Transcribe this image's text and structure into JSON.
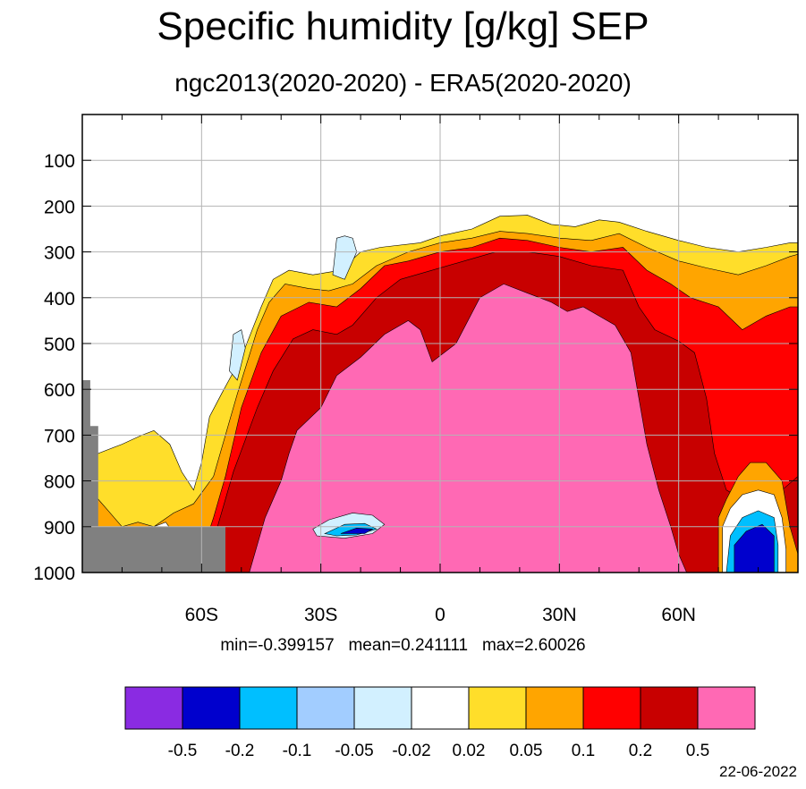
{
  "chart_data": {
    "type": "heatmap",
    "title": "Specific humidity [g/kg] SEP",
    "subtitle": "ngc2013(2020-2020) - ERA5(2020-2020)",
    "stats_text": "min=-0.399157   mean=0.241111   max=2.60026",
    "date": "22-06-2022",
    "x_range": [
      -90,
      90
    ],
    "y_range": [
      0,
      1000
    ],
    "y_reversed": true,
    "x_ticks": [
      {
        "value": -60,
        "label": "60S"
      },
      {
        "value": -30,
        "label": "30S"
      },
      {
        "value": 0,
        "label": "0"
      },
      {
        "value": 30,
        "label": "30N"
      },
      {
        "value": 60,
        "label": "60N"
      }
    ],
    "y_ticks": [
      {
        "value": 100,
        "label": "100"
      },
      {
        "value": 200,
        "label": "200"
      },
      {
        "value": 300,
        "label": "300"
      },
      {
        "value": 400,
        "label": "400"
      },
      {
        "value": 500,
        "label": "500"
      },
      {
        "value": 600,
        "label": "600"
      },
      {
        "value": 700,
        "label": "700"
      },
      {
        "value": 800,
        "label": "800"
      },
      {
        "value": 900,
        "label": "900"
      },
      {
        "value": 1000,
        "label": "1000"
      }
    ],
    "grid": true,
    "colorbar": {
      "colors": [
        "#8a2be2",
        "#0000cd",
        "#00bfff",
        "#a2cdff",
        "#d2f0ff",
        "#ffffff",
        "#ffde2a",
        "#ffa500",
        "#ff0000",
        "#c80000",
        "#ff69b4"
      ],
      "levels": [
        "-0.5",
        "-0.2",
        "-0.1",
        "-0.05",
        "-0.02",
        "0.02",
        "0.05",
        "0.1",
        "0.2",
        "0.5"
      ]
    },
    "regions": [
      {
        "level": 6,
        "color": "#ffde2a",
        "points": [
          [
            -90,
            780
          ],
          [
            -86,
            740
          ],
          [
            -80,
            720
          ],
          [
            -75,
            700
          ],
          [
            -72,
            690
          ],
          [
            -68,
            720
          ],
          [
            -65,
            780
          ],
          [
            -62,
            820
          ],
          [
            -60,
            760
          ],
          [
            -58,
            660
          ],
          [
            -55,
            610
          ],
          [
            -50,
            530
          ],
          [
            -45,
            420
          ],
          [
            -42,
            360
          ],
          [
            -38,
            340
          ],
          [
            -32,
            350
          ],
          [
            -25,
            340
          ],
          [
            -20,
            300
          ],
          [
            -15,
            290
          ],
          [
            -5,
            280
          ],
          [
            0,
            265
          ],
          [
            8,
            250
          ],
          [
            15,
            222
          ],
          [
            22,
            220
          ],
          [
            28,
            240
          ],
          [
            34,
            245
          ],
          [
            40,
            230
          ],
          [
            45,
            235
          ],
          [
            52,
            255
          ],
          [
            60,
            275
          ],
          [
            67,
            290
          ],
          [
            75,
            300
          ],
          [
            82,
            290
          ],
          [
            88,
            280
          ],
          [
            90,
            280
          ],
          [
            90,
            1000
          ],
          [
            -90,
            1000
          ]
        ]
      },
      {
        "level": 7,
        "color": "#ffa500",
        "points": [
          [
            -90,
            860
          ],
          [
            -87,
            830
          ],
          [
            -84,
            860
          ],
          [
            -80,
            900
          ],
          [
            -76,
            890
          ],
          [
            -72,
            900
          ],
          [
            -67,
            870
          ],
          [
            -62,
            850
          ],
          [
            -57,
            790
          ],
          [
            -54,
            700
          ],
          [
            -51,
            610
          ],
          [
            -46,
            470
          ],
          [
            -43,
            410
          ],
          [
            -39,
            370
          ],
          [
            -33,
            380
          ],
          [
            -28,
            385
          ],
          [
            -22,
            370
          ],
          [
            -16,
            330
          ],
          [
            -8,
            300
          ],
          [
            0,
            280
          ],
          [
            8,
            270
          ],
          [
            15,
            255
          ],
          [
            22,
            260
          ],
          [
            30,
            270
          ],
          [
            38,
            275
          ],
          [
            45,
            260
          ],
          [
            52,
            290
          ],
          [
            60,
            320
          ],
          [
            67,
            335
          ],
          [
            75,
            350
          ],
          [
            82,
            330
          ],
          [
            88,
            310
          ],
          [
            90,
            305
          ],
          [
            90,
            1000
          ],
          [
            -90,
            1000
          ]
        ]
      },
      {
        "level": 8,
        "color": "#ff0000",
        "points": [
          [
            -90,
            1000
          ],
          [
            -90,
            880
          ],
          [
            -86,
            900
          ],
          [
            -80,
            925
          ],
          [
            -70,
            930
          ],
          [
            -60,
            960
          ],
          [
            -57,
            880
          ],
          [
            -54,
            790
          ],
          [
            -50,
            640
          ],
          [
            -45,
            520
          ],
          [
            -40,
            440
          ],
          [
            -33,
            410
          ],
          [
            -26,
            420
          ],
          [
            -20,
            380
          ],
          [
            -14,
            330
          ],
          [
            -8,
            320
          ],
          [
            0,
            300
          ],
          [
            8,
            290
          ],
          [
            15,
            270
          ],
          [
            22,
            275
          ],
          [
            30,
            290
          ],
          [
            38,
            300
          ],
          [
            46,
            290
          ],
          [
            52,
            340
          ],
          [
            58,
            370
          ],
          [
            63,
            400
          ],
          [
            70,
            420
          ],
          [
            76,
            470
          ],
          [
            82,
            440
          ],
          [
            88,
            420
          ],
          [
            90,
            420
          ],
          [
            90,
            1000
          ]
        ]
      },
      {
        "level": 9,
        "color": "#c80000",
        "points": [
          [
            -58,
            1000
          ],
          [
            -56,
            900
          ],
          [
            -52,
            780
          ],
          [
            -46,
            640
          ],
          [
            -42,
            560
          ],
          [
            -37,
            490
          ],
          [
            -32,
            470
          ],
          [
            -26,
            480
          ],
          [
            -22,
            460
          ],
          [
            -16,
            400
          ],
          [
            -10,
            360
          ],
          [
            -2,
            340
          ],
          [
            6,
            320
          ],
          [
            14,
            300
          ],
          [
            22,
            300
          ],
          [
            30,
            310
          ],
          [
            38,
            330
          ],
          [
            46,
            340
          ],
          [
            50,
            420
          ],
          [
            54,
            470
          ],
          [
            60,
            495
          ],
          [
            64,
            520
          ],
          [
            67,
            620
          ],
          [
            69,
            740
          ],
          [
            72,
            820
          ],
          [
            80,
            860
          ],
          [
            86,
            820
          ],
          [
            90,
            790
          ],
          [
            90,
            1000
          ]
        ]
      },
      {
        "level": 10,
        "color": "#ff69b4",
        "points": [
          [
            -48,
            1000
          ],
          [
            -44,
            880
          ],
          [
            -40,
            800
          ],
          [
            -38,
            740
          ],
          [
            -36,
            690
          ],
          [
            -30,
            640
          ],
          [
            -26,
            570
          ],
          [
            -20,
            530
          ],
          [
            -14,
            480
          ],
          [
            -8,
            450
          ],
          [
            -5,
            470
          ],
          [
            -2,
            540
          ],
          [
            4,
            500
          ],
          [
            10,
            400
          ],
          [
            16,
            370
          ],
          [
            22,
            390
          ],
          [
            28,
            410
          ],
          [
            32,
            430
          ],
          [
            36,
            420
          ],
          [
            40,
            440
          ],
          [
            44,
            460
          ],
          [
            48,
            520
          ],
          [
            50,
            620
          ],
          [
            52,
            720
          ],
          [
            55,
            820
          ],
          [
            58,
            900
          ],
          [
            60,
            960
          ],
          [
            62,
            1000
          ]
        ]
      },
      {
        "level": 7,
        "color": "#ffa500",
        "points": [
          [
            70,
            1000
          ],
          [
            70,
            880
          ],
          [
            72,
            840
          ],
          [
            75,
            790
          ],
          [
            78,
            760
          ],
          [
            82,
            760
          ],
          [
            86,
            800
          ],
          [
            88,
            900
          ],
          [
            90,
            960
          ],
          [
            90,
            1000
          ]
        ]
      },
      {
        "level": 5,
        "color": "#ffffff",
        "points": [
          [
            71,
            1000
          ],
          [
            71,
            900
          ],
          [
            73,
            860
          ],
          [
            76,
            830
          ],
          [
            80,
            820
          ],
          [
            84,
            830
          ],
          [
            86,
            880
          ],
          [
            87,
            950
          ],
          [
            87,
            1000
          ]
        ]
      },
      {
        "level": 2,
        "color": "#00bfff",
        "points": [
          [
            72,
            1000
          ],
          [
            73,
            920
          ],
          [
            76,
            880
          ],
          [
            80,
            865
          ],
          [
            84,
            880
          ],
          [
            85,
            940
          ],
          [
            85,
            1000
          ]
        ]
      },
      {
        "level": 1,
        "color": "#0000cd",
        "points": [
          [
            74,
            1000
          ],
          [
            74,
            940
          ],
          [
            77,
            910
          ],
          [
            81,
            895
          ],
          [
            84,
            920
          ],
          [
            84,
            1000
          ]
        ]
      },
      {
        "level": 4,
        "color": "#d2f0ff",
        "points": [
          [
            -32,
            905
          ],
          [
            -28,
            885
          ],
          [
            -22,
            870
          ],
          [
            -17,
            875
          ],
          [
            -14,
            895
          ],
          [
            -17,
            915
          ],
          [
            -24,
            925
          ],
          [
            -31,
            920
          ]
        ]
      },
      {
        "level": 2,
        "color": "#00bfff",
        "points": [
          [
            -29,
            915
          ],
          [
            -24,
            895
          ],
          [
            -19,
            893
          ],
          [
            -16,
            905
          ],
          [
            -21,
            918
          ],
          [
            -26,
            920
          ]
        ]
      },
      {
        "level": 1,
        "color": "#0000cd",
        "points": [
          [
            -25,
            915
          ],
          [
            -21,
            903
          ],
          [
            -17,
            905
          ],
          [
            -19,
            915
          ]
        ]
      },
      {
        "level": 4,
        "color": "#d2f0ff",
        "points": [
          [
            -26,
            270
          ],
          [
            -24,
            265
          ],
          [
            -22,
            270
          ],
          [
            -21,
            300
          ],
          [
            -24,
            360
          ],
          [
            -27,
            350
          ]
        ]
      },
      {
        "level": 4,
        "color": "#d2f0ff",
        "points": [
          [
            -52,
            480
          ],
          [
            -50,
            470
          ],
          [
            -49,
            510
          ],
          [
            -51,
            580
          ],
          [
            -53,
            560
          ]
        ]
      },
      {
        "level": 5,
        "color": "#ffffff",
        "points": [
          [
            -74,
            940
          ],
          [
            -72,
            900
          ],
          [
            -69,
            890
          ],
          [
            -67,
            915
          ],
          [
            -67,
            940
          ]
        ]
      }
    ],
    "missing_data": [
      {
        "color": "#808080",
        "points": [
          [
            -90,
            1000
          ],
          [
            -90,
            580
          ],
          [
            -88,
            580
          ],
          [
            -88,
            680
          ],
          [
            -86,
            680
          ],
          [
            -86,
            900
          ],
          [
            -54,
            900
          ],
          [
            -54,
            1000
          ]
        ]
      }
    ]
  }
}
